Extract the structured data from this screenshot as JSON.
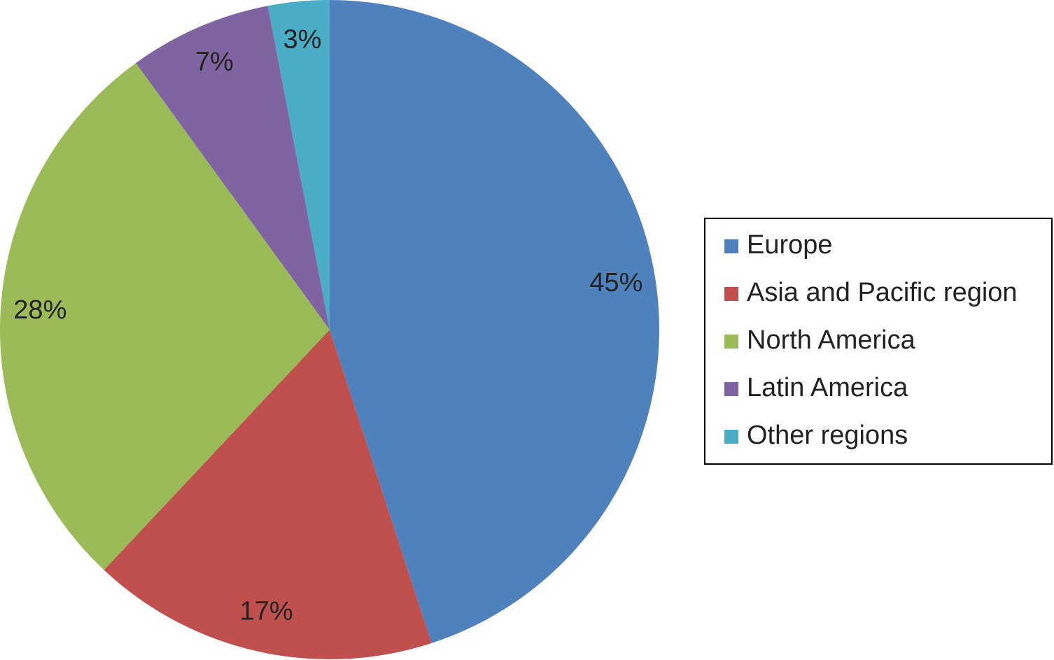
{
  "chart_data": {
    "type": "pie",
    "categories": [
      "Europe",
      "Asia and Pacific region",
      "North America",
      "Latin America",
      "Other regions"
    ],
    "values": [
      45,
      17,
      28,
      7,
      3
    ],
    "value_labels": [
      "45%",
      "17%",
      "28%",
      "7%",
      "3%"
    ],
    "colors": [
      "#4f81bd",
      "#c0504d",
      "#9bbb59",
      "#8064a2",
      "#4bacc6"
    ],
    "legend": "right"
  }
}
